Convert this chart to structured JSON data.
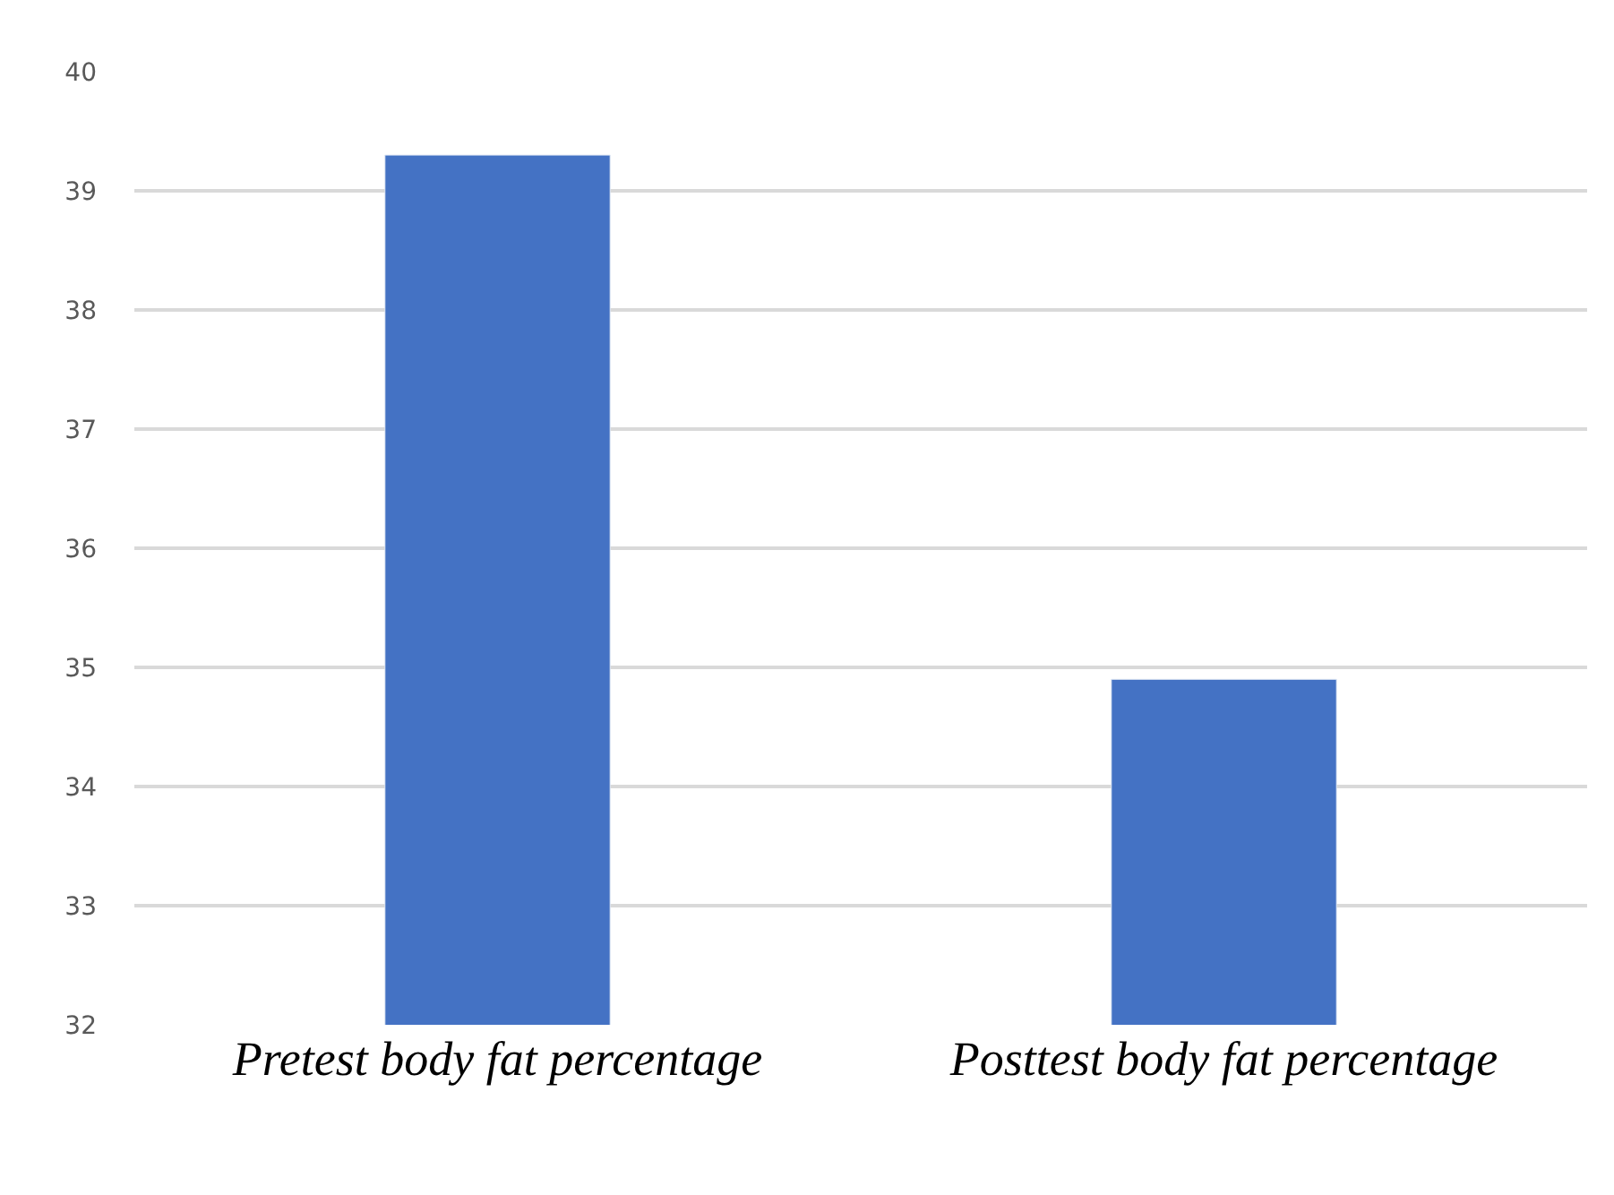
{
  "chart_data": {
    "type": "bar",
    "categories": [
      "Pretest body fat percentage",
      "Posttest body fat percentage"
    ],
    "values": [
      39.3,
      34.9
    ],
    "color": "#4472c4",
    "ylim": [
      32,
      40
    ],
    "yticks": [
      32,
      33,
      34,
      35,
      36,
      37,
      38,
      39,
      40
    ],
    "grid": "y"
  }
}
